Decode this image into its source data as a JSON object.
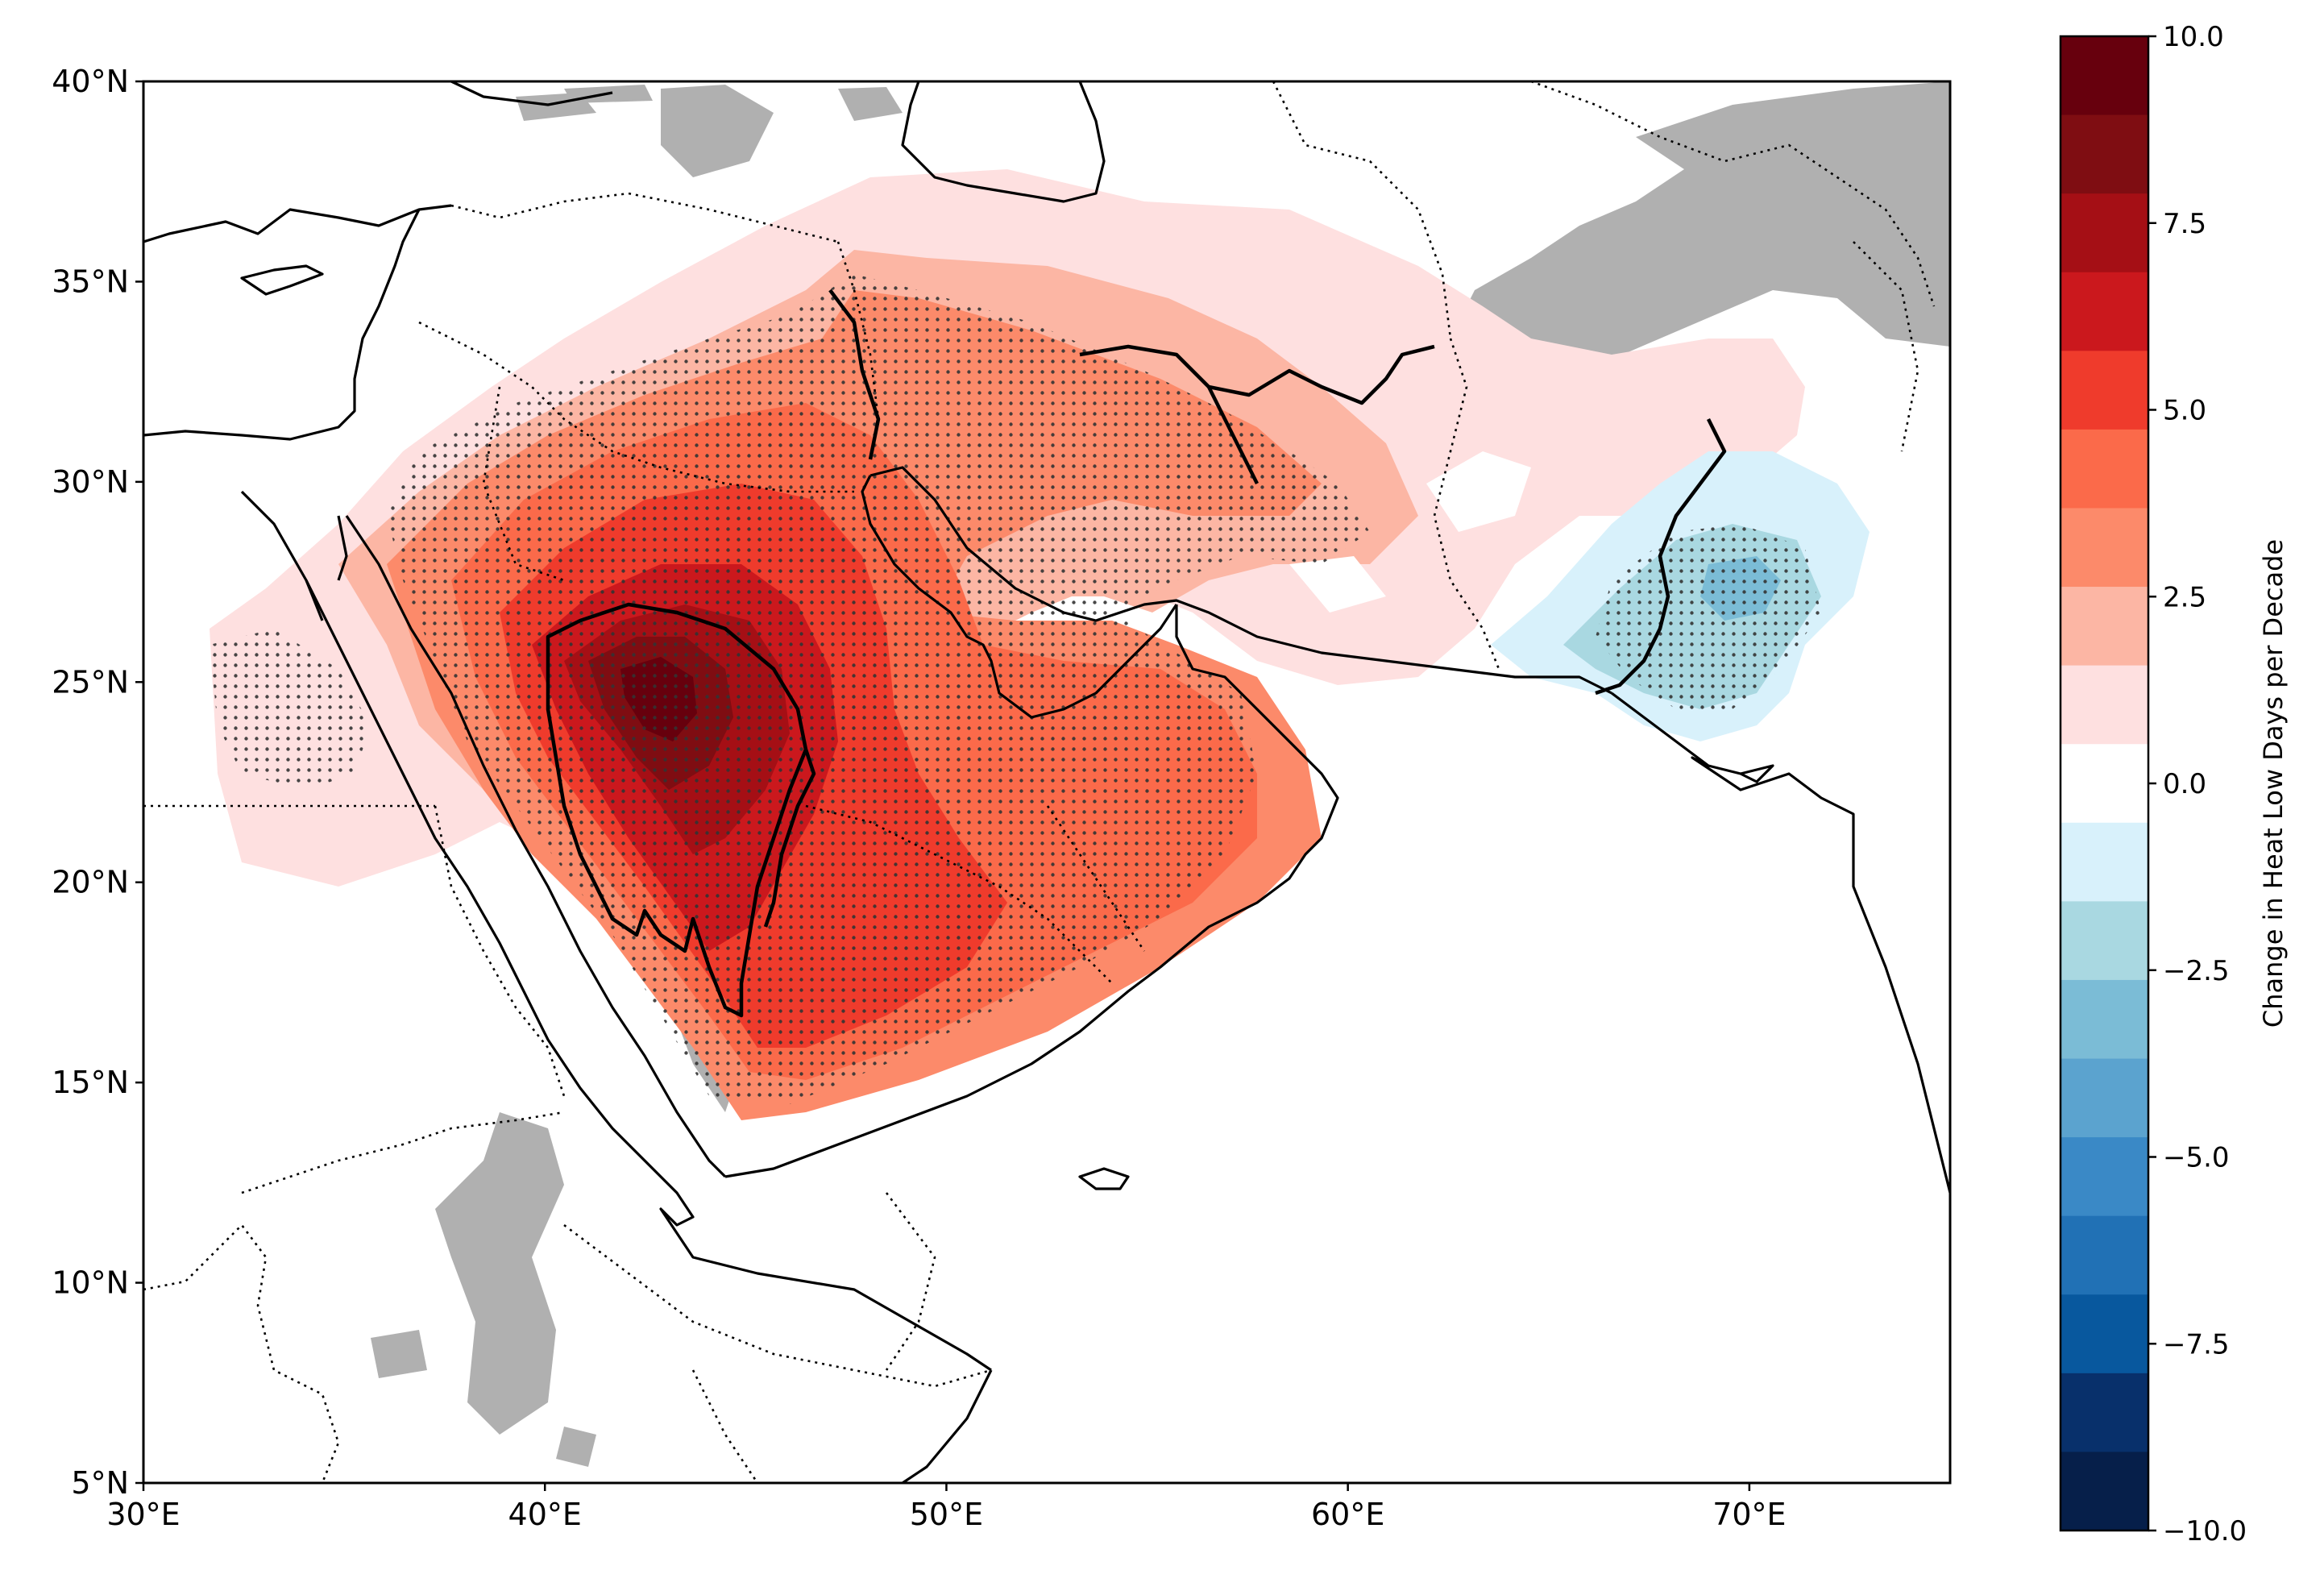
{
  "map": {
    "lon_range": [
      30,
      75
    ],
    "lat_range": [
      5,
      40
    ],
    "x_ticks": [
      {
        "value": 30,
        "label": "30°E"
      },
      {
        "value": 40,
        "label": "40°E"
      },
      {
        "value": 50,
        "label": "50°E"
      },
      {
        "value": 60,
        "label": "60°E"
      },
      {
        "value": 70,
        "label": "70°E"
      }
    ],
    "y_ticks": [
      {
        "value": 40,
        "label": "40°N"
      },
      {
        "value": 35,
        "label": "35°N"
      },
      {
        "value": 30,
        "label": "30°N"
      },
      {
        "value": 25,
        "label": "25°N"
      },
      {
        "value": 20,
        "label": "20°N"
      },
      {
        "value": 15,
        "label": "15°N"
      },
      {
        "value": 10,
        "label": "10°N"
      },
      {
        "value": 5,
        "label": "5°N"
      }
    ],
    "masked_color": "#b0b0b0",
    "stipple_color": "#333333"
  },
  "colorbar": {
    "label": "Change in Heat Low Days per Decade",
    "range": [
      -10,
      10
    ],
    "ticks": [
      {
        "value": 10,
        "label": "10.0"
      },
      {
        "value": 7.5,
        "label": "7.5"
      },
      {
        "value": 5,
        "label": "5.0"
      },
      {
        "value": 2.5,
        "label": "2.5"
      },
      {
        "value": 0,
        "label": "0.0"
      },
      {
        "value": -2.5,
        "label": "−2.5"
      },
      {
        "value": -5,
        "label": "−5.0"
      },
      {
        "value": -7.5,
        "label": "−7.5"
      },
      {
        "value": -10,
        "label": "−10.0"
      }
    ],
    "colors_top_to_bottom": [
      "#67000d",
      "#7f0d12",
      "#a50f15",
      "#cb181d",
      "#ef3b2c",
      "#fb6a4a",
      "#fc8a6a",
      "#fcb6a4",
      "#fee0e0",
      "#ffffff",
      "#d8f1fb",
      "#a9d8e1",
      "#7bbcd6",
      "#5ba3cf",
      "#3a89c6",
      "#2171b5",
      "#08589e",
      "#08306b",
      "#061f4a"
    ]
  }
}
